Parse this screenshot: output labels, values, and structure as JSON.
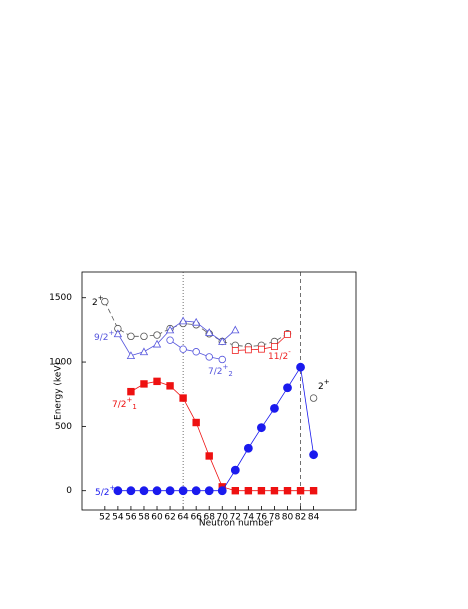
{
  "chart_data": {
    "type": "line",
    "x_label": "Neutron number",
    "y_label": "Energy (keV)",
    "xlim": [
      48.5,
      90.5
    ],
    "ylim": [
      -150,
      1700
    ],
    "xticks": [
      52,
      54,
      56,
      58,
      60,
      62,
      64,
      66,
      68,
      70,
      72,
      74,
      76,
      78,
      80,
      82,
      84
    ],
    "yticks": [
      0,
      500,
      1000,
      1500
    ],
    "vlines": [
      {
        "x": 64,
        "style": "dotted"
      },
      {
        "x": 82,
        "style": "dashed"
      }
    ],
    "series": [
      {
        "name": "2",
        "sup": "+",
        "color": "#555555",
        "marker": "open-circle",
        "line": "dashed",
        "x": [
          52,
          54,
          56,
          58,
          60,
          62,
          64,
          66,
          68,
          70,
          72,
          74,
          76,
          78,
          80,
          82,
          84
        ],
        "values": [
          1470,
          1260,
          1200,
          1200,
          1210,
          1260,
          1300,
          1290,
          1220,
          1160,
          1130,
          1120,
          1130,
          1160,
          1220,
          null,
          720
        ]
      },
      {
        "name": "9/2",
        "sup": "+",
        "color": "#5555dd",
        "marker": "open-triangle",
        "line": "solid",
        "x": [
          54,
          56,
          58,
          60,
          62,
          64,
          66,
          68,
          70,
          72
        ],
        "values": [
          1220,
          1050,
          1080,
          1140,
          1250,
          1320,
          1310,
          1230,
          1160,
          1250
        ]
      },
      {
        "name": "7/2",
        "sup": "+",
        "sub": "2",
        "color": "#5555dd",
        "marker": "open-circle",
        "line": "solid",
        "x": [
          62,
          64,
          66,
          68,
          70
        ],
        "values": [
          1170,
          1100,
          1080,
          1040,
          1020
        ]
      },
      {
        "name": "11/2",
        "sup": "-",
        "color": "#ee2222",
        "marker": "open-square",
        "line": "solid",
        "x": [
          72,
          74,
          76,
          78,
          80
        ],
        "values": [
          1090,
          1095,
          1100,
          1120,
          1215
        ]
      },
      {
        "name": "7/2",
        "sup": "+",
        "sub": "1",
        "color": "#ee1111",
        "marker": "filled-square",
        "line": "solid",
        "x": [
          56,
          58,
          60,
          62,
          64,
          66,
          68,
          70,
          72,
          74,
          76,
          78,
          80,
          82,
          84
        ],
        "values": [
          770,
          830,
          850,
          815,
          720,
          530,
          270,
          30,
          0,
          0,
          0,
          0,
          0,
          0,
          0
        ]
      },
      {
        "name": "5/2",
        "sup": "+",
        "color": "#1a1aee",
        "marker": "filled-circle",
        "line": "solid",
        "x": [
          54,
          56,
          58,
          60,
          62,
          64,
          66,
          68,
          70,
          72,
          74,
          76,
          78,
          80,
          82,
          84
        ],
        "values": [
          0,
          0,
          0,
          0,
          0,
          0,
          0,
          0,
          0,
          160,
          330,
          490,
          640,
          800,
          960,
          280
        ]
      }
    ],
    "annotations": [
      {
        "text": "2",
        "sup": "+"
      }
    ]
  }
}
